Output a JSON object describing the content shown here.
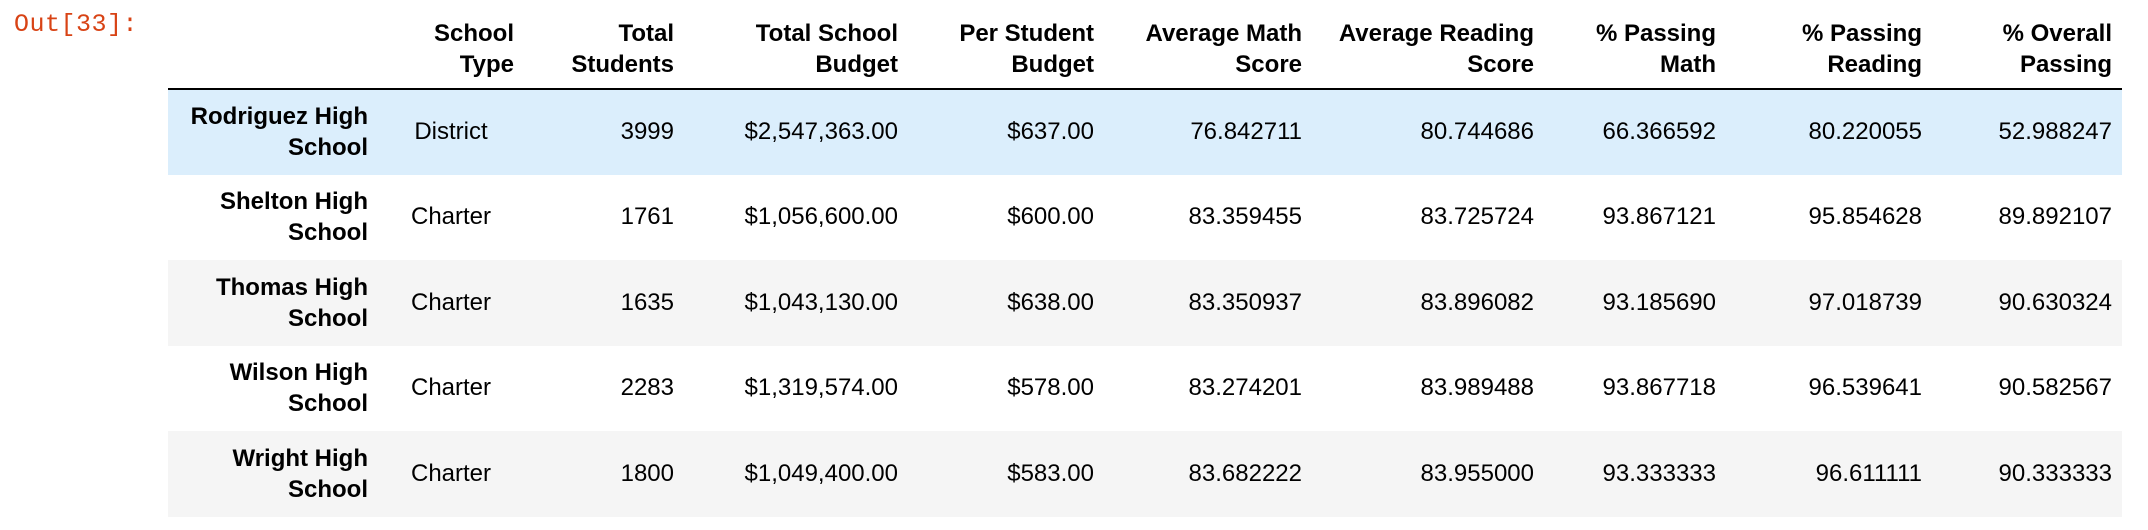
{
  "cell": {
    "prompt_label": "Out[33]:"
  },
  "table": {
    "headers": {
      "school_type": "School Type",
      "total_students": "Total Students",
      "total_budget": "Total School Budget",
      "per_student_budget": "Per Student Budget",
      "avg_math": "Average Math Score",
      "avg_reading": "Average Reading Score",
      "pct_math": "% Passing Math",
      "pct_reading": "% Passing Reading",
      "pct_overall": "% Overall Passing"
    },
    "rows": [
      {
        "name": "Rodriguez High School",
        "type": "District",
        "students": "3999",
        "budget": "$2,547,363.00",
        "per_student": "$637.00",
        "math": "76.842711",
        "reading": "80.744686",
        "pct_math": "66.366592",
        "pct_reading": "80.220055",
        "pct_overall": "52.988247"
      },
      {
        "name": "Shelton High School",
        "type": "Charter",
        "students": "1761",
        "budget": "$1,056,600.00",
        "per_student": "$600.00",
        "math": "83.359455",
        "reading": "83.725724",
        "pct_math": "93.867121",
        "pct_reading": "95.854628",
        "pct_overall": "89.892107"
      },
      {
        "name": "Thomas High School",
        "type": "Charter",
        "students": "1635",
        "budget": "$1,043,130.00",
        "per_student": "$638.00",
        "math": "83.350937",
        "reading": "83.896082",
        "pct_math": "93.185690",
        "pct_reading": "97.018739",
        "pct_overall": "90.630324"
      },
      {
        "name": "Wilson High School",
        "type": "Charter",
        "students": "2283",
        "budget": "$1,319,574.00",
        "per_student": "$578.00",
        "math": "83.274201",
        "reading": "83.989488",
        "pct_math": "93.867718",
        "pct_reading": "96.539641",
        "pct_overall": "90.582567"
      },
      {
        "name": "Wright High School",
        "type": "Charter",
        "students": "1800",
        "budget": "$1,049,400.00",
        "per_student": "$583.00",
        "math": "83.682222",
        "reading": "83.955000",
        "pct_math": "93.333333",
        "pct_reading": "96.611111",
        "pct_overall": "90.333333"
      }
    ]
  },
  "colors": {
    "prompt": "#d84315",
    "hover_row": "#dbeefc",
    "zebra_row": "#f5f5f5"
  }
}
